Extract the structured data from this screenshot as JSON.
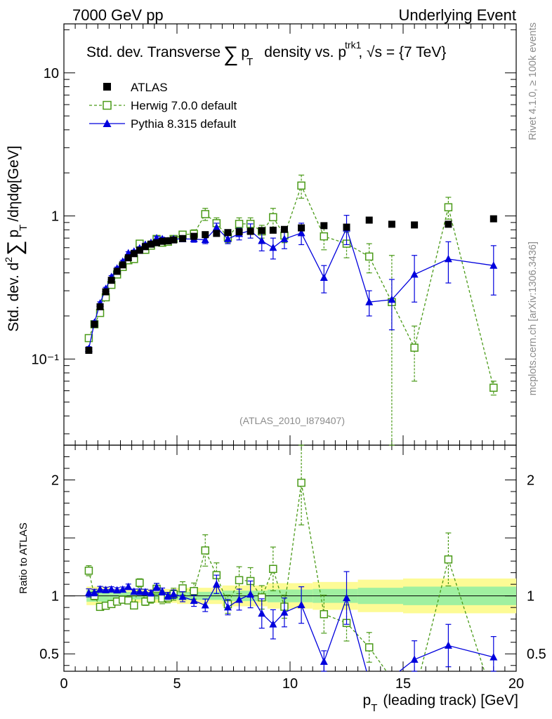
{
  "header": {
    "left": "7000 GeV pp",
    "right": "Underlying Event"
  },
  "side_texts": {
    "rivet": "Rivet 4.1.0, ≥ 100k events",
    "mcplots": "mcplots.cern.ch [arXiv:1306.3436]"
  },
  "analysis_id": "(ATLAS_2010_I879407)",
  "chart_data": {
    "type": "scatter",
    "title": "Std. dev. Transverse ∑ pT density vs. pT^trk1, √s = {7 TeV}",
    "title_parts": {
      "a": "Std. dev. Transverse",
      "sum": "∑",
      "p": "p",
      "sub": "T",
      "b": "density vs. p",
      "sup": "trk1",
      "c": ", √s = {7 TeV}"
    },
    "xlabel": "pT (leading track) [GeV]",
    "xlabel_parts": {
      "p": "p",
      "sub": "T",
      "rest": "(leading track) [GeV]"
    },
    "ylabel": "Std. dev. d² ∑ pT /dηdφ[GeV]",
    "ylabel_parts": {
      "a": "Std. dev. d",
      "sup": "2",
      "sum": "∑",
      "p": "p",
      "sub": "T",
      "b": "/dηdφ[GeV]"
    },
    "ratio_ylabel": "Ratio to ATLAS",
    "x_range": [
      0,
      20
    ],
    "y_range_log": [
      0.025,
      22
    ],
    "ratio_range": [
      0.35,
      2.3
    ],
    "x_ticks": [
      0,
      5,
      10,
      15,
      20
    ],
    "x_tick_labels": [
      "0",
      "5",
      "10",
      "15",
      "20"
    ],
    "y_ticks": [
      0.1,
      1,
      10
    ],
    "y_tick_labels": [
      "10⁻¹",
      "1",
      "10"
    ],
    "ratio_ticks": [
      0.5,
      1,
      2
    ],
    "ratio_tick_labels": [
      "0.5",
      "1",
      "2"
    ],
    "legend": [
      {
        "name": "ATLAS",
        "color": "#000000",
        "marker": "filled-square"
      },
      {
        "name": "Herwig 7.0.0 default",
        "color": "#4a9a18",
        "marker": "open-square",
        "dashed": true
      },
      {
        "name": "Pythia 8.315 default",
        "color": "#0000dd",
        "marker": "filled-triangle"
      }
    ],
    "x": [
      1.1,
      1.35,
      1.6,
      1.85,
      2.1,
      2.35,
      2.6,
      2.85,
      3.1,
      3.35,
      3.6,
      3.85,
      4.1,
      4.35,
      4.6,
      4.85,
      5.25,
      5.75,
      6.25,
      6.75,
      7.25,
      7.75,
      8.25,
      8.75,
      9.25,
      9.75,
      10.5,
      11.5,
      12.5,
      13.5,
      14.5,
      15.5,
      17.0,
      19.0
    ],
    "series": [
      {
        "name": "ATLAS",
        "values": [
          0.115,
          0.175,
          0.232,
          0.295,
          0.355,
          0.41,
          0.455,
          0.51,
          0.545,
          0.575,
          0.61,
          0.635,
          0.65,
          0.665,
          0.67,
          0.68,
          0.695,
          0.72,
          0.74,
          0.755,
          0.765,
          0.775,
          0.78,
          0.79,
          0.795,
          0.805,
          0.825,
          0.855,
          0.835,
          0.935,
          0.875,
          0.865,
          0.875,
          0.955
        ],
        "errors": [
          0.004,
          0.005,
          0.006,
          0.007,
          0.008,
          0.009,
          0.01,
          0.01,
          0.01,
          0.011,
          0.012,
          0.012,
          0.013,
          0.013,
          0.014,
          0.014,
          0.015,
          0.016,
          0.017,
          0.018,
          0.019,
          0.02,
          0.021,
          0.022,
          0.024,
          0.025,
          0.03,
          0.035,
          0.04,
          0.045,
          0.05,
          0.055,
          0.07,
          0.09
        ]
      },
      {
        "name": "Herwig 7.0.0 default",
        "values": [
          0.14,
          0.175,
          0.21,
          0.27,
          0.33,
          0.39,
          0.44,
          0.49,
          0.5,
          0.64,
          0.58,
          0.62,
          0.69,
          0.65,
          0.66,
          0.69,
          0.74,
          0.75,
          1.03,
          0.89,
          0.71,
          0.88,
          0.88,
          0.78,
          0.98,
          0.73,
          1.63,
          0.72,
          0.64,
          0.52,
          0.25,
          0.12,
          1.15,
          0.063
        ],
        "errors": [
          0.005,
          0.006,
          0.007,
          0.008,
          0.009,
          0.01,
          0.011,
          0.012,
          0.013,
          0.02,
          0.02,
          0.025,
          0.03,
          0.03,
          0.03,
          0.035,
          0.04,
          0.05,
          0.1,
          0.08,
          0.06,
          0.09,
          0.09,
          0.08,
          0.15,
          0.08,
          0.3,
          0.14,
          0.13,
          0.12,
          0.28,
          0.05,
          0.2,
          0.007
        ]
      },
      {
        "name": "Pythia 8.315 default",
        "values": [
          0.118,
          0.18,
          0.245,
          0.31,
          0.375,
          0.43,
          0.48,
          0.55,
          0.565,
          0.595,
          0.63,
          0.65,
          0.7,
          0.69,
          0.67,
          0.69,
          0.69,
          0.69,
          0.68,
          0.83,
          0.69,
          0.75,
          0.79,
          0.67,
          0.6,
          0.69,
          0.76,
          0.37,
          0.82,
          0.25,
          0.26,
          0.39,
          0.5,
          0.45
        ],
        "errors": [
          0.004,
          0.005,
          0.006,
          0.007,
          0.008,
          0.009,
          0.01,
          0.012,
          0.012,
          0.014,
          0.015,
          0.016,
          0.02,
          0.02,
          0.02,
          0.025,
          0.03,
          0.035,
          0.04,
          0.06,
          0.05,
          0.07,
          0.09,
          0.1,
          0.1,
          0.1,
          0.13,
          0.08,
          0.19,
          0.05,
          0.1,
          0.14,
          0.16,
          0.17
        ]
      }
    ],
    "ratio_band": [
      {
        "x0": 1.0,
        "x1": 2.0,
        "inner": 0.05,
        "outer": 0.08
      },
      {
        "x0": 2.0,
        "x1": 3.0,
        "inner": 0.035,
        "outer": 0.06
      },
      {
        "x0": 3.0,
        "x1": 5.0,
        "inner": 0.03,
        "outer": 0.06
      },
      {
        "x0": 5.0,
        "x1": 7.0,
        "inner": 0.035,
        "outer": 0.07
      },
      {
        "x0": 7.0,
        "x1": 9.0,
        "inner": 0.045,
        "outer": 0.09
      },
      {
        "x0": 9.0,
        "x1": 11.0,
        "inner": 0.055,
        "outer": 0.11
      },
      {
        "x0": 11.0,
        "x1": 13.0,
        "inner": 0.06,
        "outer": 0.12
      },
      {
        "x0": 13.0,
        "x1": 15.0,
        "inner": 0.07,
        "outer": 0.14
      },
      {
        "x0": 15.0,
        "x1": 20.0,
        "inner": 0.08,
        "outer": 0.15
      }
    ]
  }
}
